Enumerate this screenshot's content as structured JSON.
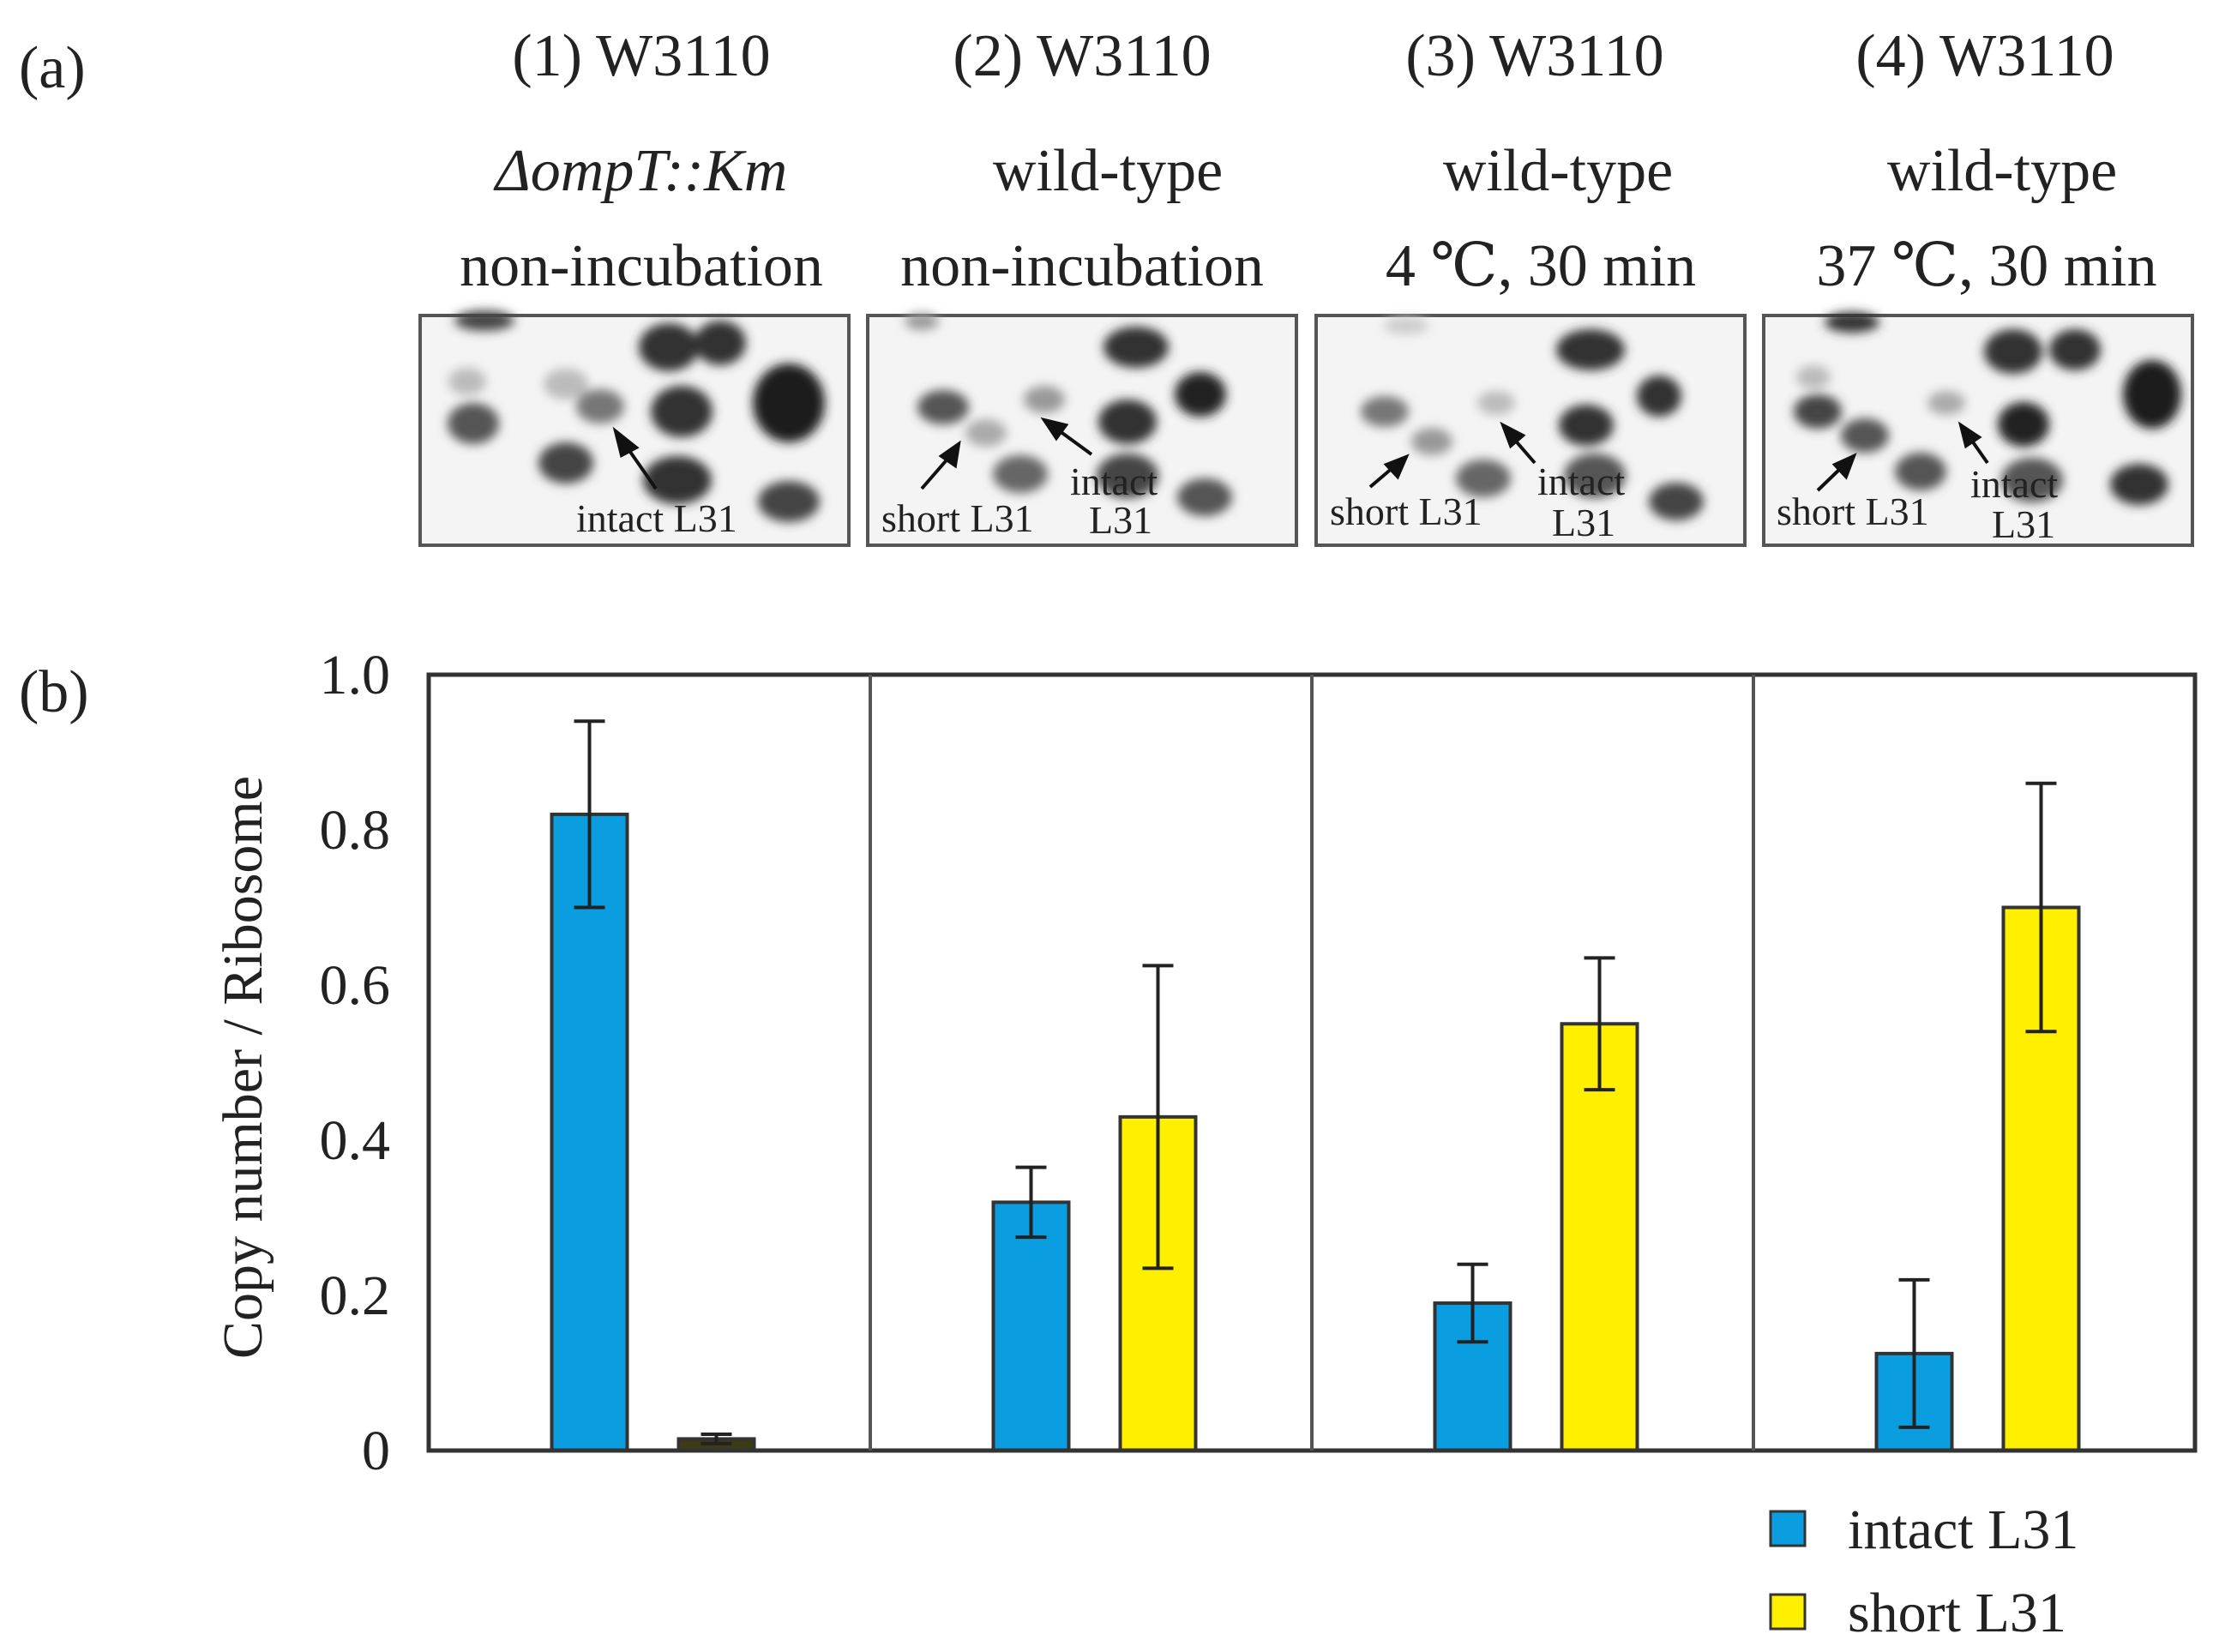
{
  "panel_a": {
    "label": "(a)",
    "lanes": [
      {
        "title": "(1) W3110",
        "genotype": "ΔompT::Km",
        "condition": "non-incubation",
        "gel_labels": [
          "intact L31"
        ]
      },
      {
        "title": "(2) W3110",
        "genotype": "wild-type",
        "condition": "non-incubation",
        "gel_labels": [
          "short L31",
          "intact",
          "L31"
        ]
      },
      {
        "title": "(3) W3110",
        "genotype": "wild-type",
        "condition": "4 ℃, 30 min",
        "gel_labels": [
          "short L31",
          "intact",
          "L31"
        ]
      },
      {
        "title": "(4) W3110",
        "genotype": "wild-type",
        "condition": "37 ℃, 30 min",
        "gel_labels": [
          "short L31",
          "intact",
          "L31"
        ]
      }
    ]
  },
  "panel_b": {
    "label": "(b)"
  },
  "chart_data": {
    "type": "bar",
    "title": "",
    "xlabel": "",
    "ylabel": "Copy number / Ribosome",
    "ylim": [
      0,
      1.0
    ],
    "yticks": [
      0,
      0.2,
      0.4,
      0.6,
      0.8,
      1.0
    ],
    "ytick_labels": [
      "0",
      "0.2",
      "0.4",
      "0.6",
      "0.8",
      "1.0"
    ],
    "categories": [
      "(1) W3110 ΔompT::Km non-incubation",
      "(2) W3110 wild-type non-incubation",
      "(3) W3110 wild-type 4 ℃, 30 min",
      "(4) W3110 wild-type 37 ℃, 30 min"
    ],
    "series": [
      {
        "name": "intact L31",
        "color": "#0a9ee0",
        "values": [
          0.82,
          0.32,
          0.19,
          0.125
        ],
        "errors": [
          0.12,
          0.045,
          0.05,
          0.095
        ]
      },
      {
        "name": "short L31",
        "color": "#fff000",
        "values": [
          0.015,
          0.43,
          0.55,
          0.7
        ],
        "errors": [
          0.006,
          0.195,
          0.085,
          0.16
        ]
      }
    ],
    "legend": {
      "position": "bottom-right",
      "entries": [
        "intact L31",
        "short L31"
      ]
    },
    "grid": false
  }
}
